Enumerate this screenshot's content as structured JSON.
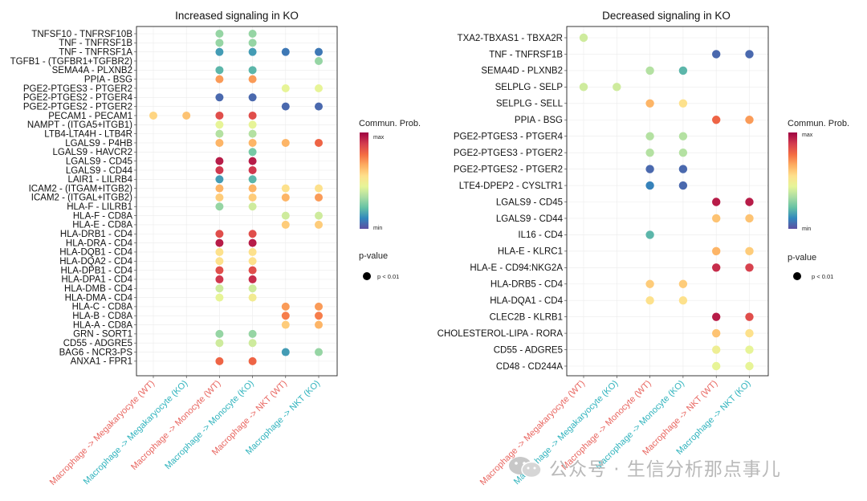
{
  "chart_data": [
    {
      "type": "scatter",
      "subtype": "dot-matrix",
      "title": "Increased signaling in KO",
      "x_categories": [
        {
          "label": "Macrophage -> Megakaryocyte (WT)",
          "group": "WT"
        },
        {
          "label": "Macrophage -> Megakaryocyte (KO)",
          "group": "KO"
        },
        {
          "label": "Macrophage -> Monocyte (WT)",
          "group": "WT"
        },
        {
          "label": "Macrophage -> Monocyte (KO)",
          "group": "KO"
        },
        {
          "label": "Macrophage -> NKT (WT)",
          "group": "WT"
        },
        {
          "label": "Macrophage -> NKT (KO)",
          "group": "KO"
        }
      ],
      "y_categories": [
        "TNFSF10 - TNFRSF10B",
        "TNF - TNFRSF1B",
        "TNF - TNFRSF1A",
        "TGFB1 - (TGFBR1+TGFBR2)",
        "SEMA4A - PLXNB2",
        "PPIA - BSG",
        "PGE2-PTGES3 - PTGER2",
        "PGE2-PTGES2 - PTGER4",
        "PGE2-PTGES2 - PTGER2",
        "PECAM1 - PECAM1",
        "NAMPT - (ITGA5+ITGB1)",
        "LTB4-LTA4H - LTB4R",
        "LGALS9 - P4HB",
        "LGALS9 - HAVCR2",
        "LGALS9 - CD45",
        "LGALS9 - CD44",
        "LAIR1 - LILRB4",
        "ICAM2 - (ITGAM+ITGB2)",
        "ICAM2 - (ITGAL+ITGB2)",
        "HLA-F - LILRB1",
        "HLA-F - CD8A",
        "HLA-E - CD8A",
        "HLA-DRB1 - CD4",
        "HLA-DRA - CD4",
        "HLA-DQB1 - CD4",
        "HLA-DQA2 - CD4",
        "HLA-DPB1 - CD4",
        "HLA-DPA1 - CD4",
        "HLA-DMB - CD4",
        "HLA-DMA - CD4",
        "HLA-C - CD8A",
        "HLA-B - CD8A",
        "HLA-A - CD8A",
        "GRN - SORT1",
        "CD55 - ADGRE5",
        "BAG6 - NCR3-PS",
        "ANXA1 - FPR1"
      ],
      "points": [
        [
          0,
          2,
          0.3
        ],
        [
          0,
          3,
          0.3
        ],
        [
          1,
          2,
          0.3
        ],
        [
          1,
          3,
          0.3
        ],
        [
          2,
          2,
          0.15
        ],
        [
          2,
          3,
          0.15
        ],
        [
          2,
          4,
          0.08
        ],
        [
          2,
          5,
          0.08
        ],
        [
          3,
          5,
          0.3
        ],
        [
          4,
          2,
          0.2
        ],
        [
          4,
          3,
          0.2
        ],
        [
          5,
          2,
          0.7
        ],
        [
          5,
          3,
          0.7
        ],
        [
          6,
          4,
          0.45
        ],
        [
          6,
          5,
          0.45
        ],
        [
          7,
          2,
          0.05
        ],
        [
          7,
          3,
          0.05
        ],
        [
          8,
          4,
          0.05
        ],
        [
          8,
          5,
          0.05
        ],
        [
          9,
          0,
          0.58
        ],
        [
          9,
          1,
          0.62
        ],
        [
          9,
          2,
          0.85
        ],
        [
          9,
          3,
          0.85
        ],
        [
          10,
          2,
          0.45
        ],
        [
          10,
          3,
          0.45
        ],
        [
          11,
          2,
          0.35
        ],
        [
          11,
          3,
          0.35
        ],
        [
          12,
          2,
          0.65
        ],
        [
          12,
          3,
          0.65
        ],
        [
          12,
          4,
          0.65
        ],
        [
          12,
          5,
          0.8
        ],
        [
          13,
          3,
          0.25
        ],
        [
          14,
          2,
          0.95
        ],
        [
          14,
          3,
          0.95
        ],
        [
          15,
          2,
          0.9
        ],
        [
          15,
          3,
          0.9
        ],
        [
          16,
          2,
          0.15
        ],
        [
          16,
          3,
          0.2
        ],
        [
          17,
          2,
          0.65
        ],
        [
          17,
          3,
          0.65
        ],
        [
          17,
          4,
          0.55
        ],
        [
          17,
          5,
          0.55
        ],
        [
          18,
          2,
          0.6
        ],
        [
          18,
          3,
          0.6
        ],
        [
          18,
          4,
          0.65
        ],
        [
          18,
          5,
          0.7
        ],
        [
          19,
          2,
          0.3
        ],
        [
          19,
          3,
          0.4
        ],
        [
          20,
          4,
          0.4
        ],
        [
          20,
          5,
          0.4
        ],
        [
          21,
          4,
          0.6
        ],
        [
          21,
          5,
          0.6
        ],
        [
          22,
          2,
          0.85
        ],
        [
          22,
          3,
          0.85
        ],
        [
          23,
          2,
          0.95
        ],
        [
          23,
          3,
          0.95
        ],
        [
          24,
          2,
          0.55
        ],
        [
          24,
          3,
          0.55
        ],
        [
          25,
          2,
          0.55
        ],
        [
          25,
          3,
          0.55
        ],
        [
          26,
          2,
          0.85
        ],
        [
          26,
          3,
          0.85
        ],
        [
          27,
          2,
          0.9
        ],
        [
          27,
          3,
          0.92
        ],
        [
          28,
          2,
          0.4
        ],
        [
          28,
          3,
          0.4
        ],
        [
          29,
          2,
          0.45
        ],
        [
          29,
          3,
          0.5
        ],
        [
          30,
          4,
          0.7
        ],
        [
          30,
          5,
          0.7
        ],
        [
          31,
          4,
          0.75
        ],
        [
          31,
          5,
          0.75
        ],
        [
          32,
          4,
          0.6
        ],
        [
          32,
          5,
          0.65
        ],
        [
          33,
          2,
          0.3
        ],
        [
          33,
          3,
          0.3
        ],
        [
          34,
          2,
          0.4
        ],
        [
          34,
          3,
          0.4
        ],
        [
          35,
          4,
          0.15
        ],
        [
          35,
          5,
          0.3
        ],
        [
          36,
          2,
          0.8
        ],
        [
          36,
          3,
          0.8
        ]
      ]
    },
    {
      "type": "scatter",
      "subtype": "dot-matrix",
      "title": "Decreased signaling in KO",
      "x_categories": [
        {
          "label": "Macrophage -> Megakaryocyte (WT)",
          "group": "WT"
        },
        {
          "label": "Macrophage -> Megakaryocyte (KO)",
          "group": "KO"
        },
        {
          "label": "Macrophage -> Monocyte (WT)",
          "group": "WT"
        },
        {
          "label": "Macrophage -> Monocyte (KO)",
          "group": "KO"
        },
        {
          "label": "Macrophage -> NKT (WT)",
          "group": "WT"
        },
        {
          "label": "Macrophage -> NKT (KO)",
          "group": "KO"
        }
      ],
      "y_categories": [
        "TXA2-TBXAS1 - TBXA2R",
        "TNF - TNFRSF1B",
        "SEMA4D - PLXNB2",
        "SELPLG - SELP",
        "SELPLG - SELL",
        "PPIA - BSG",
        "PGE2-PTGES3 - PTGER4",
        "PGE2-PTGES3 - PTGER2",
        "PGE2-PTGES2 - PTGER2",
        "LTE4-DPEP2 - CYSLTR1",
        "LGALS9 - CD45",
        "LGALS9 - CD44",
        "IL16 - CD4",
        "HLA-E - KLRC1",
        "HLA-E - CD94:NKG2A",
        "HLA-DRB5 - CD4",
        "HLA-DQA1 - CD4",
        "CLEC2B - KLRB1",
        "CHOLESTEROL-LIPA - RORA",
        "CD55 - ADGRE5",
        "CD48 - CD244A"
      ],
      "points": [
        [
          0,
          0,
          0.4
        ],
        [
          1,
          4,
          0.05
        ],
        [
          1,
          5,
          0.05
        ],
        [
          2,
          2,
          0.35
        ],
        [
          2,
          3,
          0.2
        ],
        [
          3,
          0,
          0.4
        ],
        [
          3,
          1,
          0.4
        ],
        [
          4,
          2,
          0.65
        ],
        [
          4,
          3,
          0.55
        ],
        [
          5,
          4,
          0.8
        ],
        [
          5,
          5,
          0.7
        ],
        [
          6,
          2,
          0.35
        ],
        [
          6,
          3,
          0.35
        ],
        [
          7,
          2,
          0.35
        ],
        [
          7,
          3,
          0.35
        ],
        [
          8,
          2,
          0.05
        ],
        [
          8,
          3,
          0.05
        ],
        [
          9,
          2,
          0.1
        ],
        [
          9,
          3,
          0.05
        ],
        [
          10,
          4,
          0.95
        ],
        [
          10,
          5,
          0.95
        ],
        [
          11,
          4,
          0.62
        ],
        [
          11,
          5,
          0.62
        ],
        [
          12,
          2,
          0.2
        ],
        [
          13,
          4,
          0.65
        ],
        [
          13,
          5,
          0.6
        ],
        [
          14,
          4,
          0.92
        ],
        [
          14,
          5,
          0.88
        ],
        [
          15,
          2,
          0.6
        ],
        [
          15,
          3,
          0.6
        ],
        [
          16,
          2,
          0.55
        ],
        [
          16,
          3,
          0.55
        ],
        [
          17,
          4,
          0.95
        ],
        [
          17,
          5,
          0.85
        ],
        [
          18,
          4,
          0.62
        ],
        [
          18,
          5,
          0.55
        ],
        [
          19,
          4,
          0.48
        ],
        [
          19,
          5,
          0.45
        ],
        [
          20,
          4,
          0.45
        ],
        [
          20,
          5,
          0.45
        ]
      ]
    }
  ],
  "legend": {
    "color_title": "Commun. Prob.",
    "max_label": "max",
    "min_label": "min",
    "size_title": "p-value",
    "size_label": "p < 0.01"
  },
  "colors": {
    "wt": "#e8655f",
    "ko": "#2fb3bd",
    "scale": [
      "#5e4fa2",
      "#3288bd",
      "#66c2a5",
      "#abdda4",
      "#e6f598",
      "#fee08b",
      "#fdae61",
      "#f46d43",
      "#d53e4f",
      "#9e0142"
    ]
  },
  "watermark": "公众号 · 生信分析那点事儿"
}
